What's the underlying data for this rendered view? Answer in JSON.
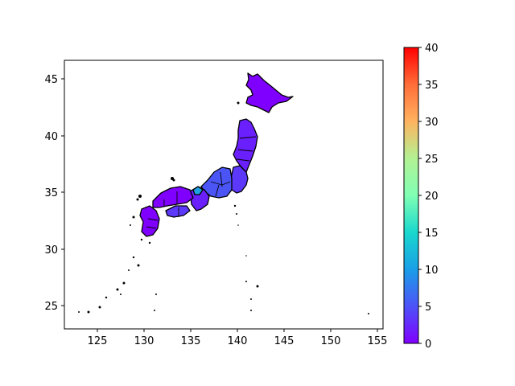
{
  "chart_data": {
    "type": "choropleth-map",
    "region": "Japan (prefectures)",
    "x_axis": {
      "min": 121.5,
      "max": 155.5,
      "ticks": [
        "125",
        "130",
        "135",
        "140",
        "145",
        "150",
        "155"
      ]
    },
    "y_axis": {
      "min": 23,
      "max": 46.7,
      "ticks": [
        "25",
        "30",
        "35",
        "40",
        "45"
      ]
    },
    "colorbar": {
      "colormap": "rainbow",
      "min": 0,
      "max": 40,
      "ticks": [
        "0",
        "5",
        "10",
        "15",
        "20",
        "25",
        "30",
        "35",
        "40"
      ]
    },
    "value_colors": {
      "low": "#7f00ff",
      "mid_low": "#4b55f5",
      "teal": "#1fa0e0"
    }
  }
}
